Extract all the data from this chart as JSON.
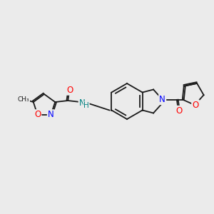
{
  "bg_color": "#ebebeb",
  "bond_color": "#1a1a1a",
  "atom_colors": {
    "O": "#ff0000",
    "N": "#0000ff",
    "N_amide": "#008080",
    "C": "#1a1a1a"
  },
  "font_size_atom": 8.5,
  "font_size_small": 7.5,
  "lw": 1.3
}
